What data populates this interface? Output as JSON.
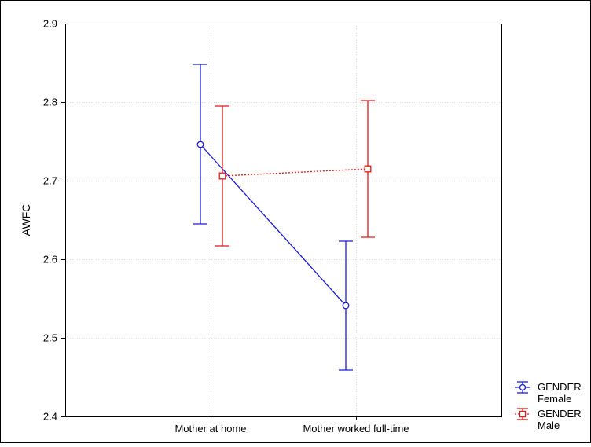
{
  "chart_data": {
    "type": "line",
    "title": "",
    "xlabel": "",
    "ylabel": "AWFC",
    "categories": [
      "Mother at home",
      "Mother worked full-time"
    ],
    "ylim": [
      2.4,
      2.9
    ],
    "yticks": [
      "2.4",
      "2.5",
      "2.6",
      "2.7",
      "2.8",
      "2.9"
    ],
    "grid": true,
    "legend_position": "bottom-right, outside plot",
    "series": [
      {
        "name": "GENDER",
        "sublabel": "Female",
        "color": "#1a1adb",
        "line_style": "solid",
        "marker": "circle",
        "values": [
          2.746,
          2.541
        ],
        "lower": [
          2.645,
          2.459
        ],
        "upper": [
          2.848,
          2.623
        ]
      },
      {
        "name": "GENDER",
        "sublabel": "Male",
        "color": "#e01818",
        "line_style": "dotted",
        "marker": "square",
        "values": [
          2.706,
          2.715
        ],
        "lower": [
          2.617,
          2.628
        ],
        "upper": [
          2.795,
          2.802
        ]
      }
    ]
  }
}
